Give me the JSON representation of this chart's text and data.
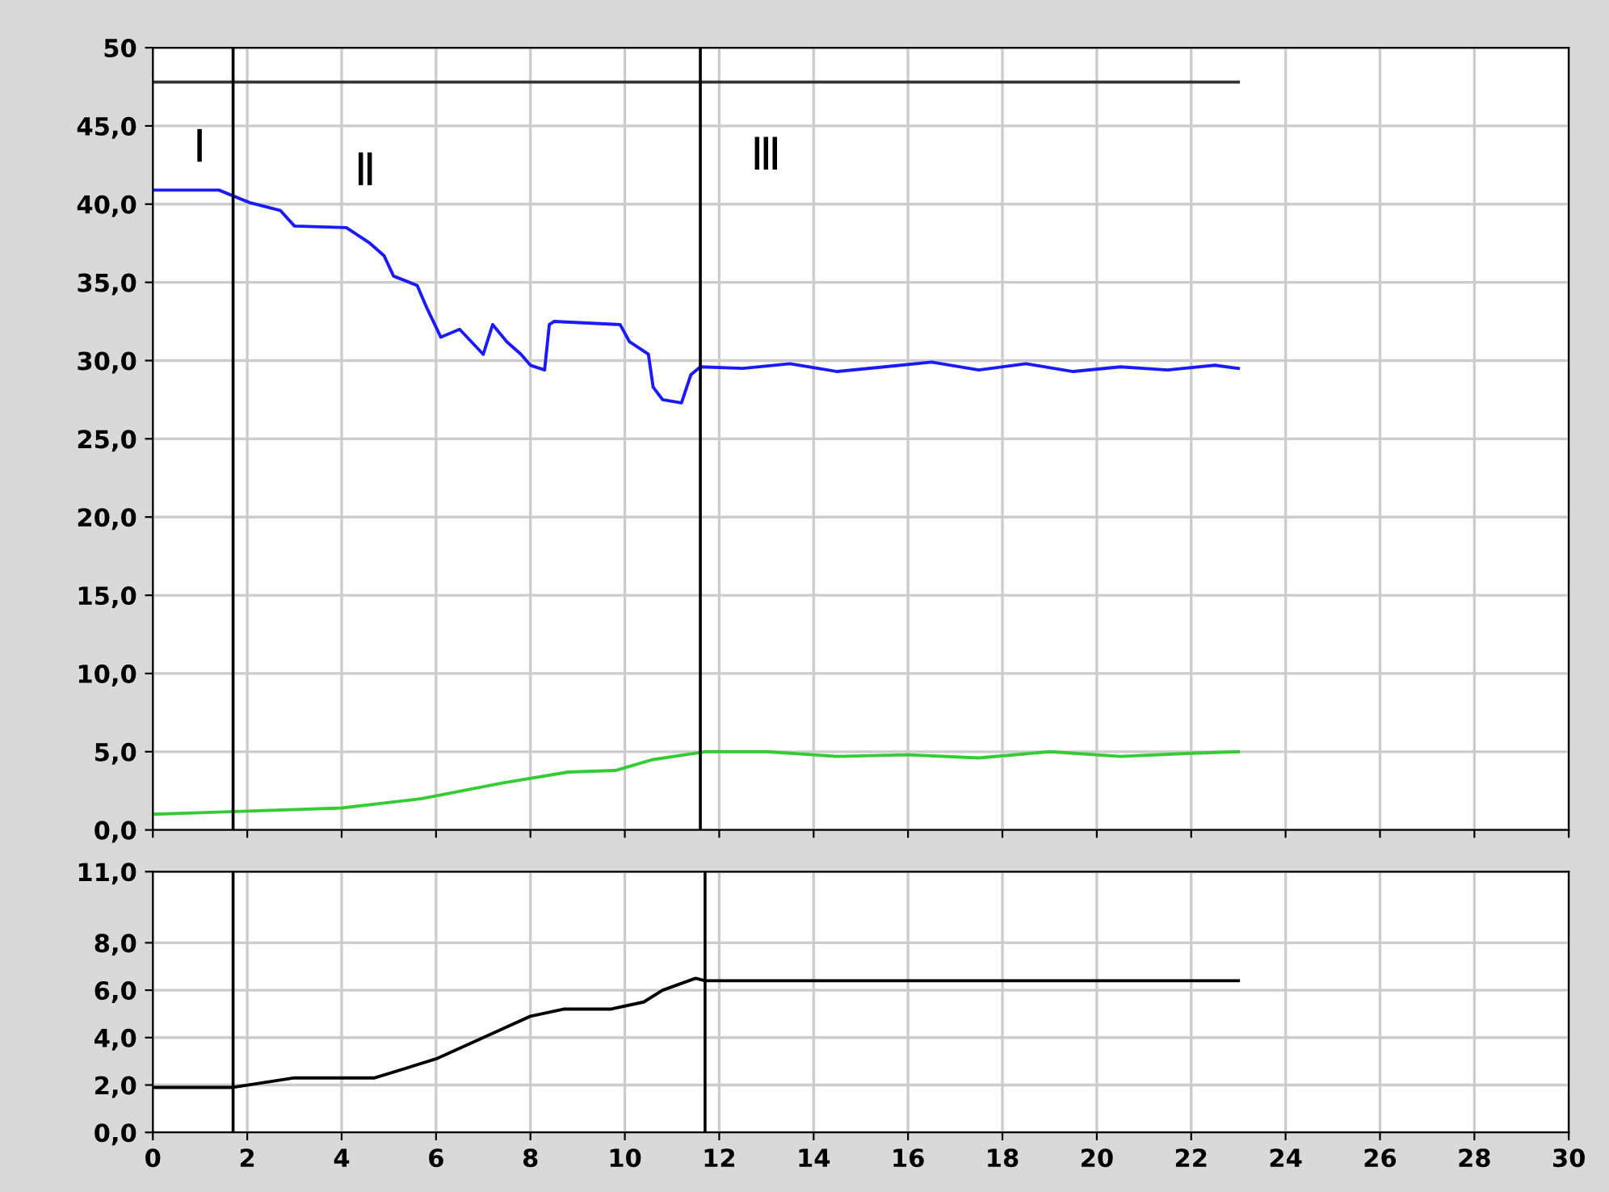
{
  "chart_data": [
    {
      "type": "line",
      "xlim": [
        0,
        30
      ],
      "ylim": [
        0,
        50
      ],
      "xticks": [
        0,
        2,
        4,
        6,
        8,
        10,
        12,
        14,
        16,
        18,
        20,
        22,
        24,
        26,
        28,
        30
      ],
      "yticks": [
        {
          "value": 0,
          "label": "0,0"
        },
        {
          "value": 5,
          "label": "5,0"
        },
        {
          "value": 10,
          "label": "10,0"
        },
        {
          "value": 15,
          "label": "15,0"
        },
        {
          "value": 20,
          "label": "20,0"
        },
        {
          "value": 25,
          "label": "25,0"
        },
        {
          "value": 30,
          "label": "30,0"
        },
        {
          "value": 35,
          "label": "35,0"
        },
        {
          "value": 40,
          "label": "40,0"
        },
        {
          "value": 45,
          "label": "45,0"
        },
        {
          "value": 50,
          "label": "50"
        }
      ],
      "tick_labels": "y",
      "grid": true,
      "legend": false,
      "series": [
        {
          "color": "#1a1aff",
          "x": [
            0,
            1.4,
            2.05,
            2.7,
            3.0,
            4.1,
            4.6,
            4.9,
            5.1,
            5.6,
            5.8,
            6.1,
            6.5,
            7.0,
            7.2,
            7.5,
            7.8,
            8.0,
            8.3,
            8.4,
            8.5,
            9.9,
            10.1,
            10.5,
            10.6,
            10.8,
            11.2,
            11.4,
            11.6,
            12.5,
            13.5,
            14.5,
            15.5,
            16.5,
            17.5,
            18.5,
            19.5,
            20.5,
            21.5,
            22.5,
            23.0
          ],
          "values": [
            40.9,
            40.9,
            40.1,
            39.6,
            38.6,
            38.5,
            37.5,
            36.7,
            35.4,
            34.8,
            33.4,
            31.5,
            32.0,
            30.4,
            32.3,
            31.2,
            30.4,
            29.7,
            29.4,
            32.3,
            32.5,
            32.3,
            31.2,
            30.4,
            28.3,
            27.5,
            27.3,
            29.1,
            29.6,
            29.5,
            29.8,
            29.3,
            29.6,
            29.9,
            29.4,
            29.8,
            29.3,
            29.6,
            29.4,
            29.7,
            29.5
          ]
        },
        {
          "color": "#33cc33",
          "x": [
            0,
            2,
            4,
            5.7,
            7.4,
            8.8,
            9.8,
            10.6,
            11.7,
            13,
            14.5,
            16,
            17.5,
            19,
            20.5,
            22,
            23
          ],
          "values": [
            1.0,
            1.2,
            1.4,
            2.0,
            3.0,
            3.7,
            3.8,
            4.5,
            5.0,
            5.0,
            4.7,
            4.8,
            4.6,
            5.0,
            4.7,
            4.9,
            5.0
          ]
        },
        {
          "color": "#333333",
          "x": [
            0,
            23
          ],
          "values": [
            47.8,
            47.8
          ]
        }
      ],
      "ref_lines": [
        {
          "axis": "x",
          "value": 1.7,
          "color": "#000000"
        },
        {
          "axis": "x",
          "value": 11.6,
          "color": "#000000"
        }
      ],
      "annotations": [
        "Ⅰ",
        "Ⅱ",
        "Ⅲ"
      ]
    },
    {
      "type": "line",
      "xlim": [
        0,
        30
      ],
      "ylim": [
        0,
        11
      ],
      "xticks": [
        0,
        2,
        4,
        6,
        8,
        10,
        12,
        14,
        16,
        18,
        20,
        22,
        24,
        26,
        28,
        30
      ],
      "yticks": [
        {
          "value": 0,
          "label": "0,0"
        },
        {
          "value": 2,
          "label": "2,0"
        },
        {
          "value": 4,
          "label": "4,0"
        },
        {
          "value": 6,
          "label": "6,0"
        },
        {
          "value": 8,
          "label": "8,0"
        },
        {
          "value": 11,
          "label": "11,0"
        }
      ],
      "grid": true,
      "legend": false,
      "series": [
        {
          "color": "#000000",
          "x": [
            0,
            1.7,
            3.0,
            4.7,
            6.0,
            8.0,
            8.7,
            9.7,
            10.4,
            10.8,
            11.5,
            11.7,
            23.0
          ],
          "values": [
            1.9,
            1.9,
            2.3,
            2.3,
            3.1,
            4.9,
            5.2,
            5.2,
            5.5,
            6.0,
            6.5,
            6.4,
            6.4
          ]
        }
      ],
      "ref_lines": [
        {
          "axis": "x",
          "value": 1.7,
          "color": "#000000"
        },
        {
          "axis": "x",
          "value": 11.7,
          "color": "#000000"
        }
      ]
    }
  ]
}
